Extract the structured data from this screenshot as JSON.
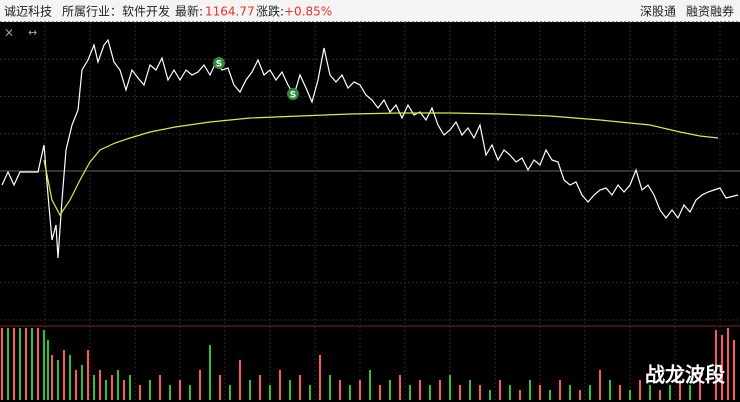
{
  "header": {
    "name": "诚迈科技",
    "industry": "所属行业：软件开发",
    "latest_label": "最新:",
    "latest": 1164.77,
    "change_label": "涨跌:",
    "change": "+0.85%",
    "tags": [
      "深股通",
      "融资融券"
    ]
  },
  "watermark": "战龙波段",
  "chart_data": [
    {
      "type": "line",
      "xlim": [
        0,
        740
      ],
      "ylim": [
        0,
        298
      ],
      "annotations": [
        "S",
        "S"
      ],
      "series": [
        {
          "color": "#ffffff",
          "x": [
            2,
            8,
            14,
            20,
            38,
            44,
            48,
            52,
            56,
            58,
            62,
            66,
            72,
            78,
            82,
            88,
            94,
            98,
            104,
            108,
            114,
            120,
            126,
            132,
            138,
            144,
            150,
            156,
            162,
            168,
            174,
            180,
            186,
            192,
            198,
            204,
            210,
            216,
            222,
            228,
            234,
            240,
            246,
            252,
            258,
            264,
            270,
            276,
            282,
            288,
            294,
            300,
            306,
            312,
            318,
            324,
            330,
            336,
            342,
            348,
            354,
            360,
            366,
            372,
            378,
            384,
            390,
            396,
            402,
            408,
            414,
            420,
            426,
            432,
            438,
            444,
            450,
            456,
            462,
            468,
            474,
            480,
            486,
            492,
            498,
            504,
            510,
            516,
            522,
            528,
            534,
            540,
            546,
            552,
            558,
            564,
            570,
            576,
            582,
            588,
            594,
            600,
            606,
            612,
            618,
            624,
            630,
            636,
            642,
            648,
            654,
            660,
            666,
            672,
            678,
            684,
            690,
            696,
            702,
            708,
            714,
            720,
            726,
            738
          ],
          "values": [
            135,
            148,
            135,
            148,
            148,
            175,
            125,
            80,
            95,
            62,
            120,
            170,
            195,
            210,
            250,
            260,
            275,
            258,
            275,
            280,
            258,
            250,
            230,
            250,
            242,
            235,
            255,
            250,
            262,
            240,
            250,
            240,
            250,
            245,
            248,
            255,
            245,
            258,
            250,
            252,
            235,
            228,
            240,
            248,
            260,
            245,
            250,
            240,
            248,
            235,
            225,
            245,
            232,
            218,
            240,
            272,
            245,
            238,
            245,
            232,
            238,
            235,
            225,
            220,
            212,
            220,
            208,
            215,
            202,
            215,
            205,
            208,
            200,
            212,
            195,
            185,
            190,
            198,
            185,
            192,
            182,
            195,
            165,
            175,
            160,
            170,
            165,
            158,
            162,
            150,
            160,
            155,
            170,
            160,
            158,
            140,
            135,
            138,
            125,
            118,
            125,
            130,
            132,
            125,
            135,
            128,
            135,
            150,
            130,
            135,
            125,
            110,
            102,
            110,
            102,
            115,
            108,
            120,
            125,
            128,
            130,
            132,
            122,
            125
          ]
        },
        {
          "color": "#e6e645",
          "x": [
            44,
            52,
            60,
            70,
            80,
            90,
            100,
            115,
            130,
            150,
            175,
            210,
            250,
            300,
            350,
            400,
            450,
            500,
            550,
            600,
            650,
            680,
            700,
            718
          ],
          "values": [
            160,
            120,
            105,
            120,
            140,
            158,
            170,
            177,
            182,
            188,
            193,
            198,
            202,
            204,
            206,
            207,
            207,
            206,
            204,
            200,
            195,
            188,
            184,
            182
          ]
        }
      ]
    },
    {
      "type": "bar",
      "xlim": [
        0,
        740
      ],
      "ylim": [
        0,
        74
      ],
      "series": [
        {
          "color": "#ff5a5a",
          "x": [
            2,
            14,
            26,
            38,
            52,
            64,
            76,
            88,
            100,
            112,
            124,
            140,
            160,
            180,
            200,
            220,
            240,
            260,
            280,
            300,
            320,
            340,
            360,
            380,
            400,
            420,
            440,
            460,
            480,
            500,
            520,
            540,
            560,
            580,
            600,
            620,
            640,
            660,
            680,
            700,
            716,
            722,
            728,
            734
          ],
          "values": [
            72,
            72,
            72,
            72,
            45,
            50,
            30,
            50,
            30,
            25,
            20,
            15,
            25,
            20,
            30,
            25,
            40,
            25,
            30,
            25,
            45,
            20,
            20,
            15,
            25,
            20,
            20,
            15,
            15,
            20,
            10,
            15,
            20,
            10,
            30,
            15,
            20,
            10,
            20,
            25,
            70,
            65,
            72,
            60
          ]
        },
        {
          "color": "#2fc13a",
          "x": [
            8,
            20,
            32,
            44,
            48,
            58,
            70,
            82,
            94,
            106,
            118,
            130,
            150,
            170,
            190,
            210,
            230,
            250,
            270,
            290,
            310,
            330,
            350,
            370,
            390,
            410,
            430,
            450,
            470,
            490,
            510,
            530,
            550,
            570,
            590,
            610,
            630,
            650,
            670,
            690
          ],
          "values": [
            72,
            72,
            72,
            70,
            60,
            40,
            45,
            35,
            25,
            20,
            30,
            25,
            20,
            15,
            15,
            55,
            15,
            20,
            15,
            20,
            15,
            25,
            15,
            30,
            20,
            15,
            15,
            25,
            20,
            10,
            15,
            20,
            10,
            15,
            15,
            20,
            10,
            15,
            15,
            15
          ]
        }
      ]
    }
  ]
}
